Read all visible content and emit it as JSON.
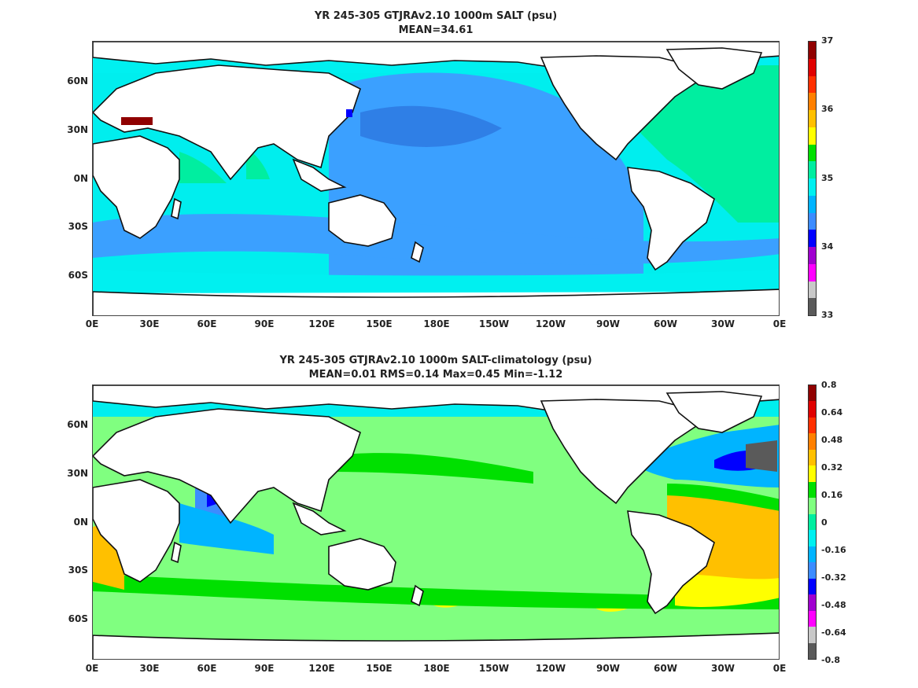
{
  "panels": [
    {
      "title": "YR 245-305 GTJRAv2.10 1000m SALT (psu)",
      "subtitle": "MEAN=34.61",
      "ocean_color": "#3ba0ff",
      "colorbar": {
        "colors": [
          "#5a5a5a",
          "#c8c8c8",
          "#ff00ff",
          "#a000d0",
          "#0000ff",
          "#3c8cff",
          "#00b4ff",
          "#00f0f0",
          "#00eea0",
          "#00e000",
          "#ffff00",
          "#ffc000",
          "#ff8000",
          "#ff3000",
          "#e00000",
          "#900000"
        ],
        "labels": [
          "37",
          "36",
          "35",
          "34",
          "33"
        ]
      }
    },
    {
      "title": "YR 245-305 GTJRAv2.10 1000m SALT-climatology (psu)",
      "subtitle": "MEAN=0.01   RMS=0.14   Max=0.45   Min=-1.12",
      "ocean_color": "#80ff80",
      "colorbar": {
        "colors": [
          "#5a5a5a",
          "#c8c8c8",
          "#ff00ff",
          "#a000d0",
          "#0000ff",
          "#3c8cff",
          "#00b4ff",
          "#00f0f0",
          "#00eea0",
          "#80ff80",
          "#00e000",
          "#ffff00",
          "#ffc000",
          "#ff8000",
          "#ff3000",
          "#e00000",
          "#900000"
        ],
        "labels": [
          "0.8",
          "0.64",
          "0.48",
          "0.32",
          "0.16",
          "0",
          "-0.16",
          "-0.32",
          "-0.48",
          "-0.64",
          "-0.8"
        ]
      }
    }
  ],
  "lat_labels": [
    "60N",
    "30N",
    "0N",
    "30S",
    "60S"
  ],
  "lon_labels": [
    "0E",
    "30E",
    "60E",
    "90E",
    "120E",
    "150E",
    "180E",
    "150W",
    "120W",
    "90W",
    "60W",
    "30W",
    "0E"
  ]
}
